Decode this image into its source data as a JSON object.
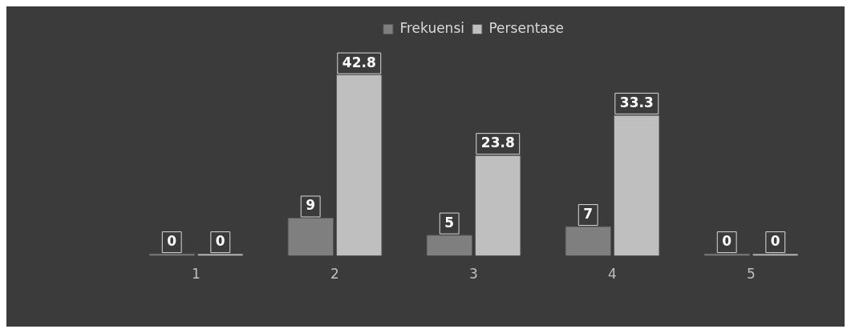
{
  "chart_data": {
    "type": "bar",
    "categories": [
      "1",
      "2",
      "3",
      "4",
      "5"
    ],
    "series": [
      {
        "name": "Frekuensi",
        "color": "#7f7f7f",
        "values": [
          0,
          9,
          5,
          7,
          0
        ]
      },
      {
        "name": "Persentase",
        "color": "#bfbfbf",
        "values": [
          0,
          42.8,
          23.8,
          33.3,
          0
        ]
      }
    ],
    "data_labels": true,
    "legend": "top",
    "grid": false
  }
}
